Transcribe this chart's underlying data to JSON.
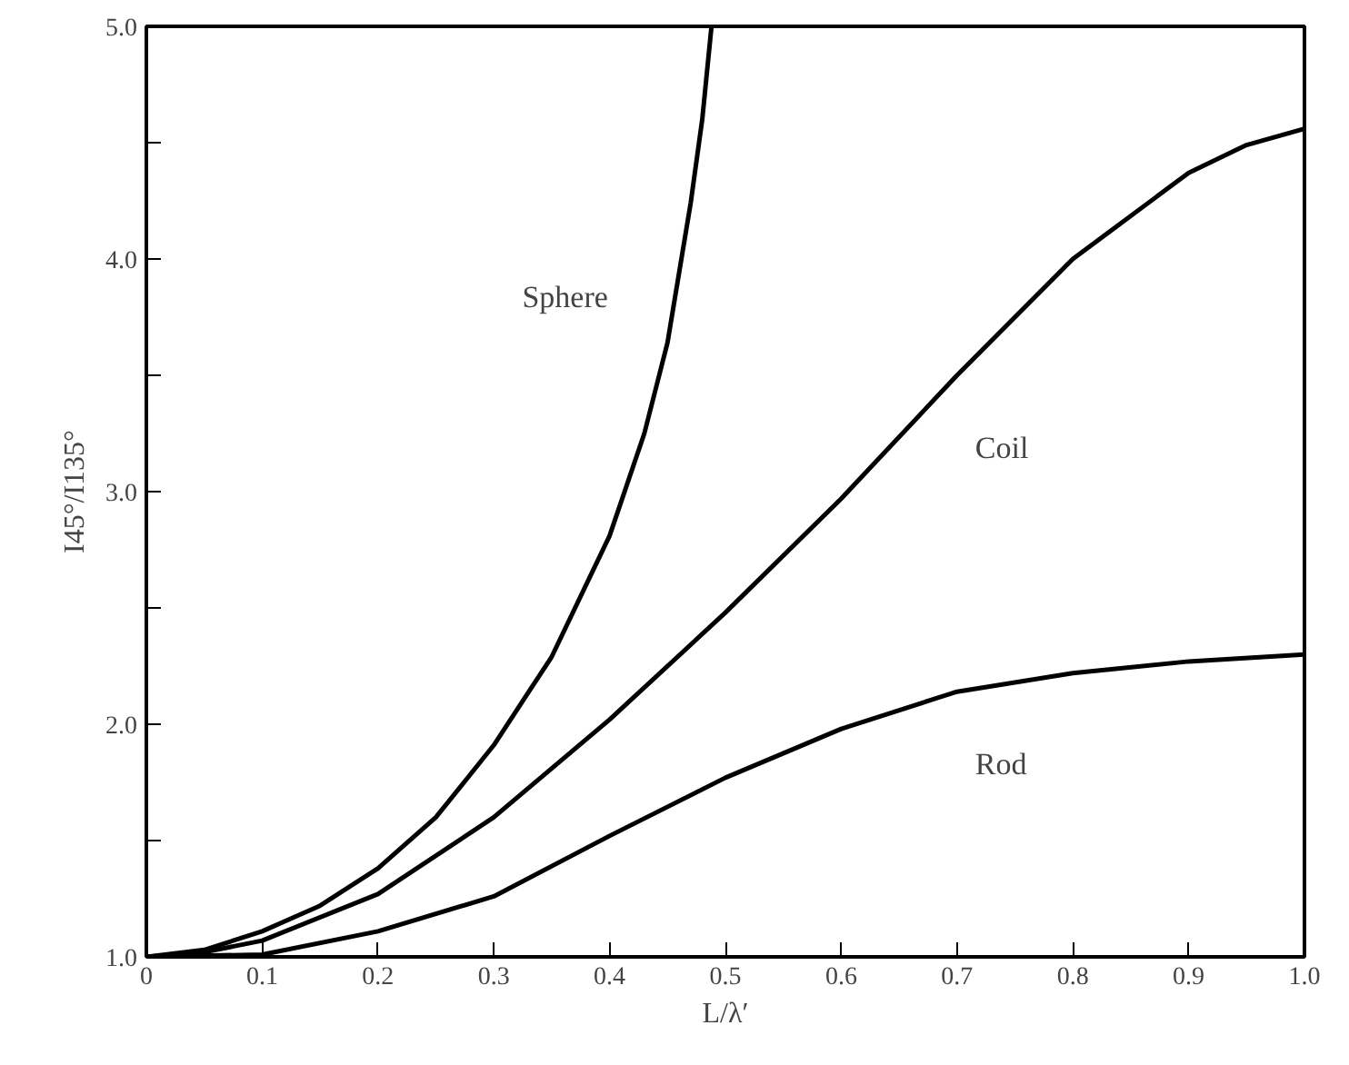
{
  "chart_data": {
    "type": "line",
    "xlabel": "L/λ′",
    "ylabel": "I45°/I135°",
    "xlim": [
      0,
      1.0
    ],
    "ylim": [
      1.0,
      5.0
    ],
    "xticks": [
      0,
      0.1,
      0.2,
      0.3,
      0.4,
      0.5,
      0.6,
      0.7,
      0.8,
      0.9,
      {
        "value": 1.0,
        "label": "1.0"
      }
    ],
    "yticks": [
      {
        "value": 1.0,
        "label": "1.0"
      },
      {
        "value": 1.5,
        "label": null
      },
      {
        "value": 2.0,
        "label": "2.0"
      },
      {
        "value": 2.5,
        "label": null
      },
      {
        "value": 3.0,
        "label": "3.0"
      },
      {
        "value": 3.5,
        "label": null
      },
      {
        "value": 4.0,
        "label": "4.0"
      },
      {
        "value": 4.5,
        "label": null
      },
      {
        "value": 5.0,
        "label": "5.0"
      }
    ],
    "grid": false,
    "legend": false,
    "marker": "none",
    "line_style": "solid",
    "series": [
      {
        "name": "Sphere",
        "color": "#000000",
        "x": [
          0,
          0.05,
          0.1,
          0.15,
          0.2,
          0.25,
          0.3,
          0.35,
          0.4,
          0.43,
          0.45,
          0.47,
          0.48,
          0.488
        ],
        "values": [
          1.0,
          1.03,
          1.11,
          1.22,
          1.38,
          1.6,
          1.91,
          2.29,
          2.81,
          3.25,
          3.64,
          4.24,
          4.6,
          5.0
        ]
      },
      {
        "name": "Coil",
        "color": "#000000",
        "x": [
          0,
          0.05,
          0.1,
          0.2,
          0.3,
          0.4,
          0.5,
          0.6,
          0.7,
          0.8,
          0.9,
          0.95,
          1.0
        ],
        "values": [
          1.0,
          1.02,
          1.07,
          1.27,
          1.6,
          2.02,
          2.48,
          2.97,
          3.5,
          4.0,
          4.37,
          4.49,
          4.56
        ]
      },
      {
        "name": "Rod",
        "color": "#000000",
        "x": [
          0,
          0.1,
          0.2,
          0.3,
          0.4,
          0.5,
          0.6,
          0.7,
          0.8,
          0.9,
          1.0
        ],
        "values": [
          1.0,
          1.01,
          1.11,
          1.26,
          1.52,
          1.77,
          1.98,
          2.14,
          2.22,
          2.27,
          2.3
        ]
      }
    ]
  }
}
